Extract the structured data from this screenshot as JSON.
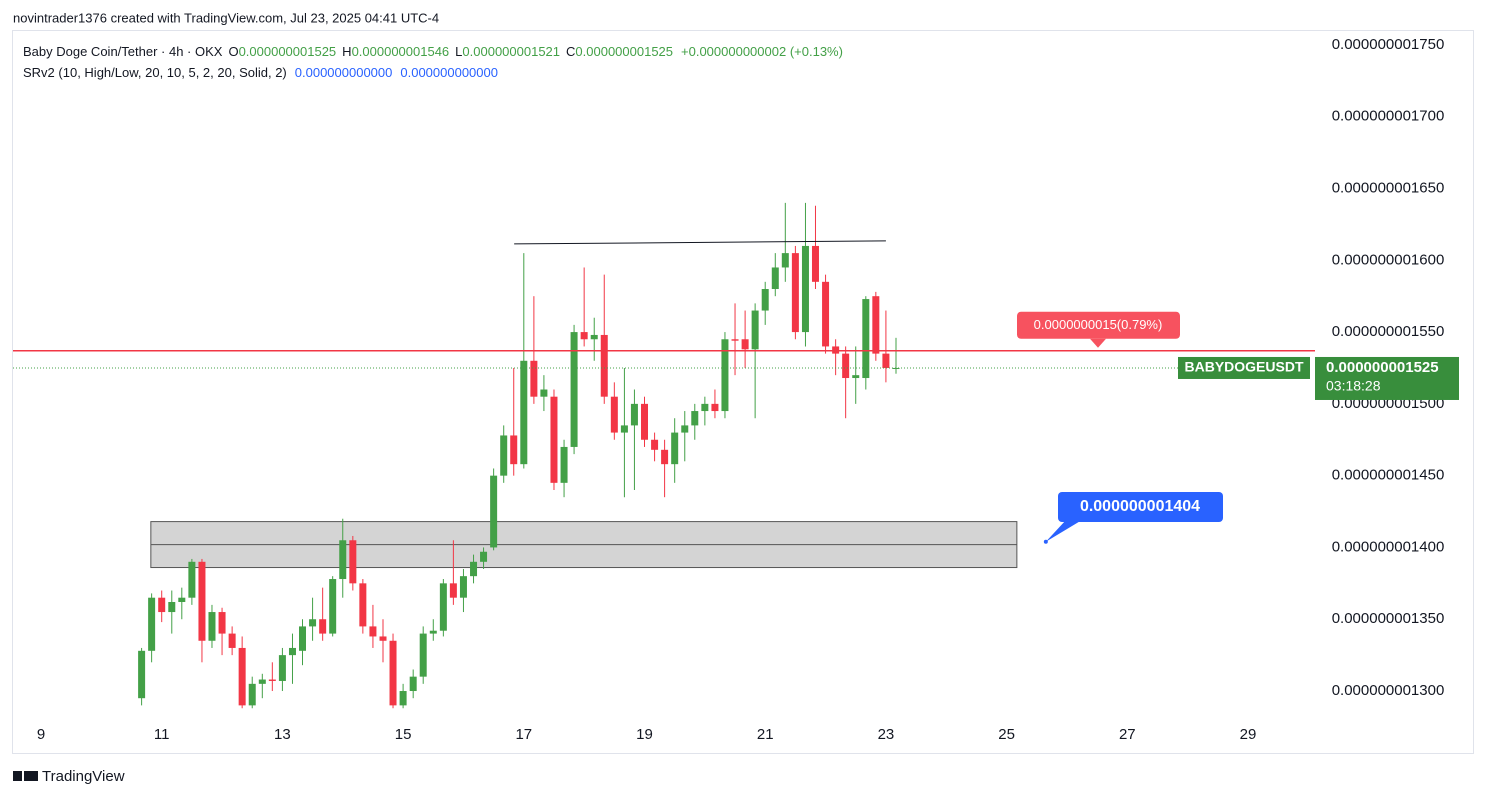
{
  "attribution": "novintrader1376 created with TradingView.com, Jul 23, 2025 04:41 UTC-4",
  "footer": "TradingView",
  "chart_data": {
    "type": "candlestick",
    "title": "Baby Doge Coin/Tether · 4h · OKX",
    "ohlc_legend": [
      {
        "key": "O",
        "value": "0.000000001525"
      },
      {
        "key": "H",
        "value": "0.000000001546"
      },
      {
        "key": "L",
        "value": "0.000000001521"
      },
      {
        "key": "C",
        "value": "0.000000001525"
      }
    ],
    "change": "+0.000000000002 (+0.13%)",
    "indicator": {
      "name": "SRv2 (10, High/Low, 20, 10, 5, 2, 20, Solid, 2)",
      "values": [
        "0.000000000000",
        "0.000000000000"
      ]
    },
    "up_color": "#43a047",
    "down_color": "#f23645",
    "xlim": [
      8.536,
      30.11
    ],
    "xticks": [
      9,
      11,
      13,
      15,
      17,
      19,
      21,
      23,
      25,
      27,
      29
    ],
    "ylim": [
      1.2826e-09,
      1.7604e-09
    ],
    "yticks": [
      {
        "value": 1.3e-09,
        "label": "0.000000001300"
      },
      {
        "value": 1.35e-09,
        "label": "0.000000001350"
      },
      {
        "value": 1.4e-09,
        "label": "0.000000001400"
      },
      {
        "value": 1.45e-09,
        "label": "0.000000001450"
      },
      {
        "value": 1.5e-09,
        "label": "0.000000001500"
      },
      {
        "value": 1.55e-09,
        "label": "0.000000001550"
      },
      {
        "value": 1.6e-09,
        "label": "0.000000001600"
      },
      {
        "value": 1.65e-09,
        "label": "0.000000001650"
      },
      {
        "value": 1.7e-09,
        "label": "0.000000001700"
      },
      {
        "value": 1.75e-09,
        "label": "0.000000001750"
      }
    ],
    "x": [
      10.667,
      10.833,
      11,
      11.167,
      11.333,
      11.5,
      11.667,
      11.833,
      12,
      12.167,
      12.333,
      12.5,
      12.667,
      12.833,
      13,
      13.167,
      13.333,
      13.5,
      13.667,
      13.833,
      14,
      14.167,
      14.333,
      14.5,
      14.667,
      14.833,
      15,
      15.167,
      15.333,
      15.5,
      15.667,
      15.833,
      16,
      16.167,
      16.333,
      16.5,
      16.667,
      16.833,
      17,
      17.167,
      17.333,
      17.5,
      17.667,
      17.833,
      18,
      18.167,
      18.333,
      18.5,
      18.667,
      18.833,
      19,
      19.167,
      19.333,
      19.5,
      19.667,
      19.833,
      20,
      20.167,
      20.333,
      20.5,
      20.667,
      20.833,
      21,
      21.167,
      21.333,
      21.5,
      21.667,
      21.833,
      22,
      22.167,
      22.333,
      22.5,
      22.667,
      22.833,
      23,
      23.167
    ],
    "open": [
      1.295e-09,
      1.328e-09,
      1.365e-09,
      1.355e-09,
      1.362e-09,
      1.365e-09,
      1.39e-09,
      1.335e-09,
      1.355e-09,
      1.34e-09,
      1.33e-09,
      1.29e-09,
      1.305e-09,
      1.308e-09,
      1.307e-09,
      1.325e-09,
      1.328e-09,
      1.345e-09,
      1.35e-09,
      1.34e-09,
      1.378e-09,
      1.405e-09,
      1.375e-09,
      1.345e-09,
      1.338e-09,
      1.335e-09,
      1.29e-09,
      1.3e-09,
      1.31e-09,
      1.34e-09,
      1.342e-09,
      1.375e-09,
      1.365e-09,
      1.38e-09,
      1.39e-09,
      1.4e-09,
      1.45e-09,
      1.478e-09,
      1.458e-09,
      1.53e-09,
      1.505e-09,
      1.505e-09,
      1.445e-09,
      1.47e-09,
      1.55e-09,
      1.545e-09,
      1.548e-09,
      1.505e-09,
      1.48e-09,
      1.485e-09,
      1.5e-09,
      1.475e-09,
      1.468e-09,
      1.458e-09,
      1.48e-09,
      1.485e-09,
      1.495e-09,
      1.5e-09,
      1.495e-09,
      1.545e-09,
      1.545e-09,
      1.538e-09,
      1.565e-09,
      1.58e-09,
      1.595e-09,
      1.605e-09,
      1.55e-09,
      1.61e-09,
      1.585e-09,
      1.54e-09,
      1.535e-09,
      1.518e-09,
      1.518e-09,
      1.575e-09,
      1.535e-09,
      1.525e-09
    ],
    "high": [
      1.33e-09,
      1.368e-09,
      1.37e-09,
      1.37e-09,
      1.372e-09,
      1.392e-09,
      1.392e-09,
      1.36e-09,
      1.358e-09,
      1.345e-09,
      1.338e-09,
      1.31e-09,
      1.312e-09,
      1.32e-09,
      1.33e-09,
      1.34e-09,
      1.35e-09,
      1.365e-09,
      1.372e-09,
      1.38e-09,
      1.42e-09,
      1.408e-09,
      1.378e-09,
      1.36e-09,
      1.35e-09,
      1.34e-09,
      1.305e-09,
      1.315e-09,
      1.345e-09,
      1.35e-09,
      1.378e-09,
      1.405e-09,
      1.385e-09,
      1.395e-09,
      1.4e-09,
      1.455e-09,
      1.485e-09,
      1.525e-09,
      1.605e-09,
      1.575e-09,
      1.52e-09,
      1.51e-09,
      1.475e-09,
      1.555e-09,
      1.595e-09,
      1.56e-09,
      1.59e-09,
      1.515e-09,
      1.525e-09,
      1.51e-09,
      1.505e-09,
      1.48e-09,
      1.475e-09,
      1.49e-09,
      1.495e-09,
      1.5e-09,
      1.505e-09,
      1.51e-09,
      1.55e-09,
      1.57e-09,
      1.565e-09,
      1.57e-09,
      1.585e-09,
      1.605e-09,
      1.64e-09,
      1.61e-09,
      1.64e-09,
      1.638e-09,
      1.59e-09,
      1.545e-09,
      1.54e-09,
      1.54e-09,
      1.575e-09,
      1.578e-09,
      1.565e-09,
      1.546e-09
    ],
    "low": [
      1.29e-09,
      1.32e-09,
      1.348e-09,
      1.34e-09,
      1.35e-09,
      1.36e-09,
      1.32e-09,
      1.33e-09,
      1.325e-09,
      1.325e-09,
      1.288e-09,
      1.288e-09,
      1.295e-09,
      1.3e-09,
      1.3e-09,
      1.305e-09,
      1.318e-09,
      1.335e-09,
      1.335e-09,
      1.338e-09,
      1.365e-09,
      1.37e-09,
      1.34e-09,
      1.33e-09,
      1.32e-09,
      1.288e-09,
      1.288e-09,
      1.295e-09,
      1.305e-09,
      1.335e-09,
      1.338e-09,
      1.36e-09,
      1.355e-09,
      1.375e-09,
      1.385e-09,
      1.398e-09,
      1.445e-09,
      1.45e-09,
      1.455e-09,
      1.5e-09,
      1.495e-09,
      1.44e-09,
      1.435e-09,
      1.465e-09,
      1.54e-09,
      1.53e-09,
      1.5e-09,
      1.475e-09,
      1.435e-09,
      1.44e-09,
      1.47e-09,
      1.46e-09,
      1.435e-09,
      1.445e-09,
      1.46e-09,
      1.475e-09,
      1.485e-09,
      1.49e-09,
      1.49e-09,
      1.52e-09,
      1.525e-09,
      1.49e-09,
      1.555e-09,
      1.575e-09,
      1.585e-09,
      1.545e-09,
      1.54e-09,
      1.58e-09,
      1.535e-09,
      1.52e-09,
      1.49e-09,
      1.5e-09,
      1.51e-09,
      1.53e-09,
      1.515e-09,
      1.521e-09
    ],
    "close": [
      1.328e-09,
      1.365e-09,
      1.355e-09,
      1.362e-09,
      1.365e-09,
      1.39e-09,
      1.335e-09,
      1.355e-09,
      1.34e-09,
      1.33e-09,
      1.29e-09,
      1.305e-09,
      1.308e-09,
      1.307e-09,
      1.325e-09,
      1.33e-09,
      1.345e-09,
      1.35e-09,
      1.34e-09,
      1.378e-09,
      1.405e-09,
      1.375e-09,
      1.345e-09,
      1.338e-09,
      1.335e-09,
      1.29e-09,
      1.3e-09,
      1.31e-09,
      1.34e-09,
      1.342e-09,
      1.375e-09,
      1.365e-09,
      1.38e-09,
      1.39e-09,
      1.397e-09,
      1.45e-09,
      1.478e-09,
      1.458e-09,
      1.53e-09,
      1.505e-09,
      1.51e-09,
      1.445e-09,
      1.47e-09,
      1.55e-09,
      1.545e-09,
      1.548e-09,
      1.505e-09,
      1.48e-09,
      1.485e-09,
      1.5e-09,
      1.475e-09,
      1.468e-09,
      1.458e-09,
      1.48e-09,
      1.485e-09,
      1.495e-09,
      1.5e-09,
      1.495e-09,
      1.545e-09,
      1.544e-09,
      1.538e-09,
      1.565e-09,
      1.58e-09,
      1.595e-09,
      1.605e-09,
      1.55e-09,
      1.61e-09,
      1.585e-09,
      1.54e-09,
      1.535e-09,
      1.518e-09,
      1.52e-09,
      1.573e-09,
      1.535e-09,
      1.525e-09,
      1.525e-09
    ],
    "zone": {
      "x": [
        10.82,
        25.17
      ],
      "top": 1.418e-09,
      "mid": 1.402e-09,
      "bottom": 1.386e-09
    },
    "trendline": {
      "x": [
        16.84,
        23.0
      ],
      "y": [
        1.6114e-09,
        1.6135e-09
      ]
    },
    "price_line": {
      "value": 1.537e-09,
      "label": "0.0000000015(0.79%)"
    },
    "current_price": {
      "value": 1.525e-09,
      "symbol": "BABYDOGEUSDT",
      "label": "0.000000001525",
      "countdown": "03:18:28"
    },
    "callout": {
      "x": 25.65,
      "value": 1.404e-09,
      "label": "0.000000001404"
    }
  }
}
